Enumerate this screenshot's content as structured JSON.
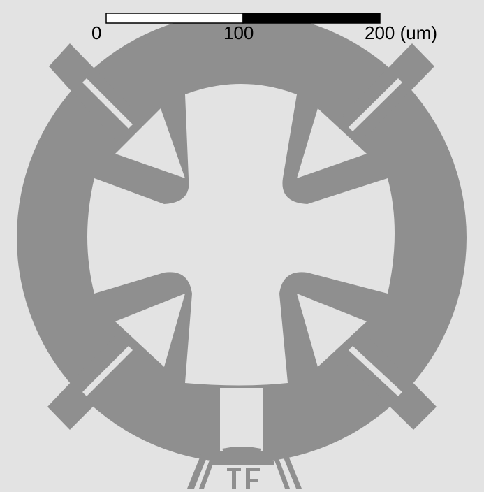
{
  "colors": {
    "background": "#e3e3e3",
    "metal": "#8f8f8f",
    "bar_light": "#ffffff",
    "bar_dark": "#000000"
  },
  "scale_bar": {
    "label_start": "0",
    "label_mid": "100",
    "label_end": "200 (um)"
  }
}
